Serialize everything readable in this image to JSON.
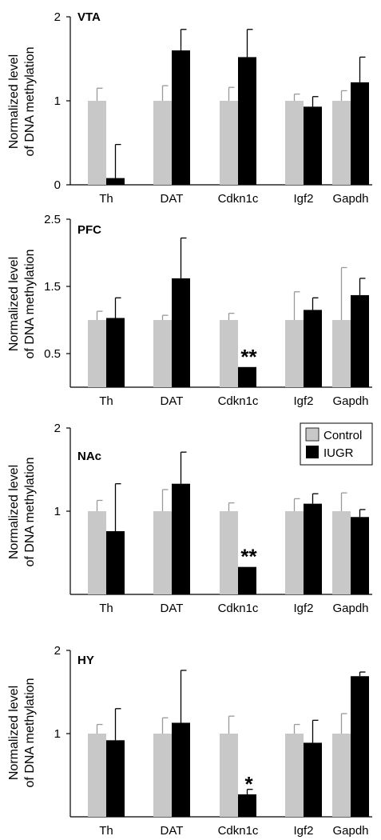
{
  "colors": {
    "control": "#c8c8c8",
    "iugr": "#000000"
  },
  "legend": {
    "placement": "top-right of NAc panel",
    "entries": [
      "Control",
      "IUGR"
    ]
  },
  "chart_data": [
    {
      "type": "bar",
      "panel_label": "VTA",
      "ylabel": "Normalized level of DNA methylation",
      "ylabel_lines": [
        "Normalized level",
        "of DNA methylation"
      ],
      "ylim": [
        0,
        2
      ],
      "yticks": [
        0,
        1,
        2
      ],
      "ytick_labels": [
        "0",
        "1",
        "2"
      ],
      "categories": [
        "Th",
        "DAT",
        "Cdkn1c",
        "Igf2",
        "Gapdh"
      ],
      "series": [
        {
          "name": "Control",
          "values": [
            1.0,
            1.0,
            1.0,
            1.0,
            1.0
          ],
          "errors": [
            0.15,
            0.18,
            0.16,
            0.08,
            0.12
          ]
        },
        {
          "name": "IUGR",
          "values": [
            0.08,
            1.6,
            1.52,
            0.93,
            1.22
          ],
          "errors": [
            0.4,
            0.25,
            0.33,
            0.12,
            0.3
          ]
        }
      ],
      "significance": [
        "",
        "",
        "",
        "",
        ""
      ]
    },
    {
      "type": "bar",
      "panel_label": "PFC",
      "ylabel": "Normalized level of DNA methylation",
      "ylabel_lines": [
        "Normalized level",
        "of DNA methylation"
      ],
      "ylim": [
        0,
        2.5
      ],
      "yticks": [
        0.5,
        1.5,
        2.5
      ],
      "ytick_labels": [
        "0.5",
        "1.5",
        "2.5"
      ],
      "categories": [
        "Th",
        "DAT",
        "Cdkn1c",
        "Igf2",
        "Gapdh"
      ],
      "series": [
        {
          "name": "Control",
          "values": [
            1.0,
            1.0,
            1.0,
            1.0,
            1.0
          ],
          "errors": [
            0.13,
            0.07,
            0.1,
            0.42,
            0.78
          ]
        },
        {
          "name": "IUGR",
          "values": [
            1.03,
            1.62,
            0.3,
            1.15,
            1.37
          ],
          "errors": [
            0.3,
            0.6,
            0,
            0.18,
            0.25
          ]
        }
      ],
      "significance": [
        "",
        "",
        "**",
        "",
        ""
      ]
    },
    {
      "type": "bar",
      "panel_label": "NAc",
      "ylabel": "Normalized level of DNA methylation",
      "ylabel_lines": [
        "Normalized level",
        "of DNA methylation"
      ],
      "ylim": [
        0,
        2
      ],
      "yticks": [
        1,
        2
      ],
      "ytick_labels": [
        "1",
        "2"
      ],
      "categories": [
        "Th",
        "DAT",
        "Cdkn1c",
        "Igf2",
        "Gapdh"
      ],
      "series": [
        {
          "name": "Control",
          "values": [
            1.0,
            1.0,
            1.0,
            1.0,
            1.0
          ],
          "errors": [
            0.13,
            0.26,
            0.1,
            0.15,
            0.22
          ]
        },
        {
          "name": "IUGR",
          "values": [
            0.76,
            1.33,
            0.33,
            1.09,
            0.93
          ],
          "errors": [
            0.57,
            0.38,
            0,
            0.12,
            0.09
          ]
        }
      ],
      "significance": [
        "",
        "",
        "**",
        "",
        ""
      ]
    },
    {
      "type": "bar",
      "panel_label": "HY",
      "ylabel": "Normalized level of DNA methylation",
      "ylabel_lines": [
        "Normalized level",
        "of DNA methylation"
      ],
      "ylim": [
        0,
        2
      ],
      "yticks": [
        1,
        2
      ],
      "ytick_labels": [
        "1",
        "2"
      ],
      "categories": [
        "Th",
        "DAT",
        "Cdkn1c",
        "Igf2",
        "Gapdh"
      ],
      "series": [
        {
          "name": "Control",
          "values": [
            1.0,
            1.0,
            1.0,
            1.0,
            1.0
          ],
          "errors": [
            0.11,
            0.19,
            0.21,
            0.11,
            0.24
          ]
        },
        {
          "name": "IUGR",
          "values": [
            0.92,
            1.13,
            0.27,
            0.89,
            1.69
          ],
          "errors": [
            0.38,
            0.63,
            0.06,
            0.27,
            0.05
          ]
        }
      ],
      "significance": [
        "",
        "",
        "*",
        "",
        ""
      ]
    }
  ]
}
